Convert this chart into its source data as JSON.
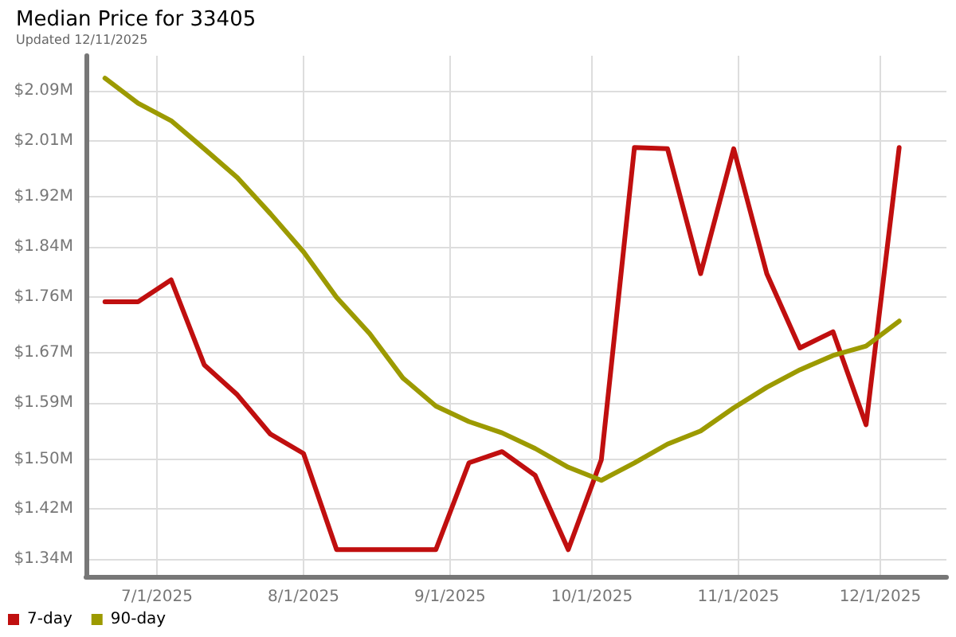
{
  "chart_data": {
    "type": "line",
    "title": "Median Price for 33405",
    "subtitle": "Updated 12/11/2025",
    "x": [
      "2025-06-20",
      "2025-06-27",
      "2025-07-04",
      "2025-07-11",
      "2025-07-18",
      "2025-07-25",
      "2025-08-01",
      "2025-08-08",
      "2025-08-15",
      "2025-08-22",
      "2025-08-29",
      "2025-09-05",
      "2025-09-12",
      "2025-09-19",
      "2025-09-26",
      "2025-10-03",
      "2025-10-10",
      "2025-10-17",
      "2025-10-24",
      "2025-10-31",
      "2025-11-07",
      "2025-11-14",
      "2025-11-21",
      "2025-11-28",
      "2025-12-05"
    ],
    "series": [
      {
        "name": "7-day",
        "color": "#c00f0f",
        "values": [
          1.752,
          1.752,
          1.787,
          1.651,
          1.603,
          1.54,
          1.509,
          1.355,
          1.355,
          1.355,
          1.355,
          1.494,
          1.512,
          1.474,
          1.355,
          1.499,
          1.999,
          1.997,
          1.797,
          1.997,
          1.797,
          1.678,
          1.704,
          1.555,
          1.999
        ]
      },
      {
        "name": "90-day",
        "color": "#9c9a00",
        "values": [
          2.11,
          2.07,
          2.042,
          1.997,
          1.951,
          1.893,
          1.832,
          1.759,
          1.701,
          1.63,
          1.585,
          1.56,
          1.542,
          1.517,
          1.487,
          1.466,
          1.494,
          1.524,
          1.545,
          1.582,
          1.615,
          1.643,
          1.666,
          1.681,
          1.721
        ]
      }
    ],
    "xlim": [
      "2025-06-16",
      "2025-12-15"
    ],
    "xticks": [
      {
        "value": "2025-07-01",
        "label": "7/1/2025"
      },
      {
        "value": "2025-08-01",
        "label": "8/1/2025"
      },
      {
        "value": "2025-09-01",
        "label": "9/1/2025"
      },
      {
        "value": "2025-10-01",
        "label": "10/1/2025"
      },
      {
        "value": "2025-11-01",
        "label": "11/1/2025"
      },
      {
        "value": "2025-12-01",
        "label": "12/1/2025"
      }
    ],
    "ylim": [
      1.312,
      2.146
    ],
    "yticks": [
      {
        "value": 1.34,
        "label": "$1.34M"
      },
      {
        "value": 1.42,
        "label": "$1.42M"
      },
      {
        "value": 1.5,
        "label": "$1.50M"
      },
      {
        "value": 1.59,
        "label": "$1.59M"
      },
      {
        "value": 1.67,
        "label": "$1.67M"
      },
      {
        "value": 1.76,
        "label": "$1.76M"
      },
      {
        "value": 1.84,
        "label": "$1.84M"
      },
      {
        "value": 1.92,
        "label": "$1.92M"
      },
      {
        "value": 2.01,
        "label": "$2.01M"
      },
      {
        "value": 2.09,
        "label": "$2.09M"
      }
    ],
    "grid": true,
    "legend": "bottom left",
    "marker": "none",
    "line_style": "solid"
  }
}
